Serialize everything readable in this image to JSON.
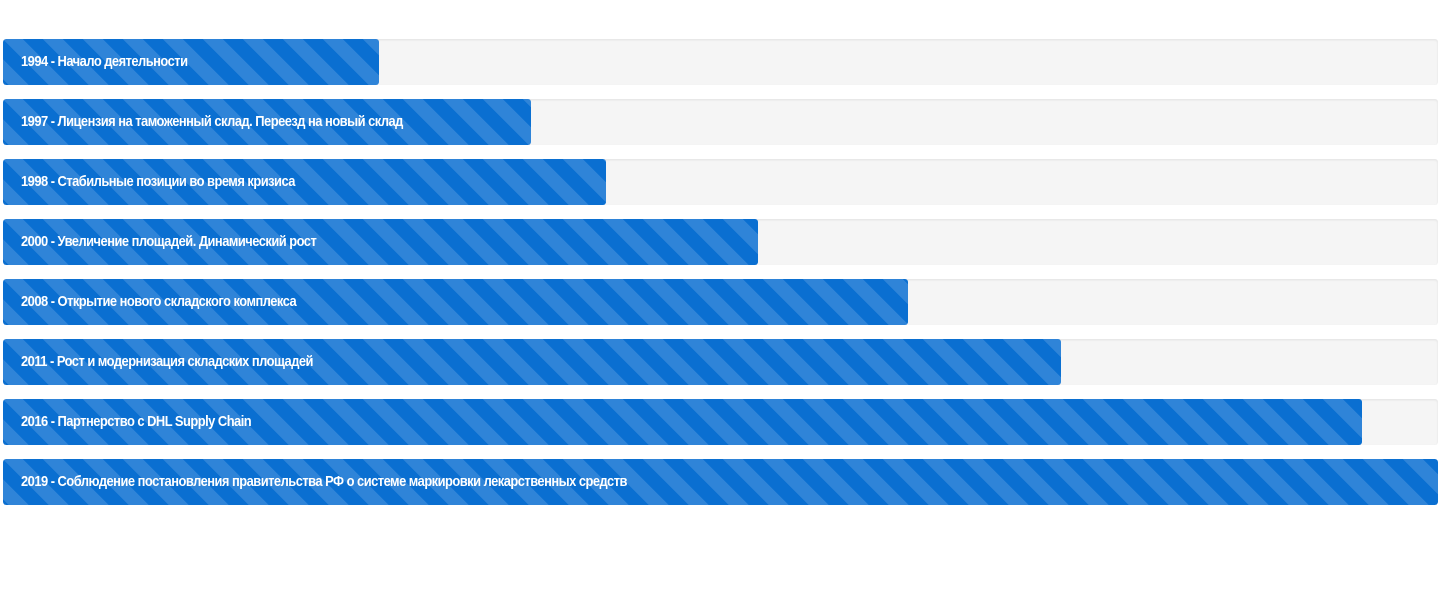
{
  "milestones": [
    {
      "label": "1994 - Начало деятельности",
      "progress": 0.262
    },
    {
      "label": "1997 - Лицензия на таможенный склад. Переезд на новый склад",
      "progress": 0.368
    },
    {
      "label": "1998 - Стабильные позиции во время кризиса",
      "progress": 0.42
    },
    {
      "label": "2000 - Увеличение площадей. Динамический рост",
      "progress": 0.526
    },
    {
      "label": "2008 - Открытие нового складского комплекса",
      "progress": 0.631
    },
    {
      "label": "2011 - Рост и модернизация складских площадей",
      "progress": 0.737
    },
    {
      "label": "2016 - Партнерство с DHL Supply Chain",
      "progress": 0.947
    },
    {
      "label": "2019 - Соблюдение постановления правительства РФ о системе маркировки лекарственных средств",
      "progress": 1.0
    }
  ],
  "colors": {
    "fill": "#0a6fd1",
    "track": "#f5f5f5",
    "label": "#ffffff"
  }
}
